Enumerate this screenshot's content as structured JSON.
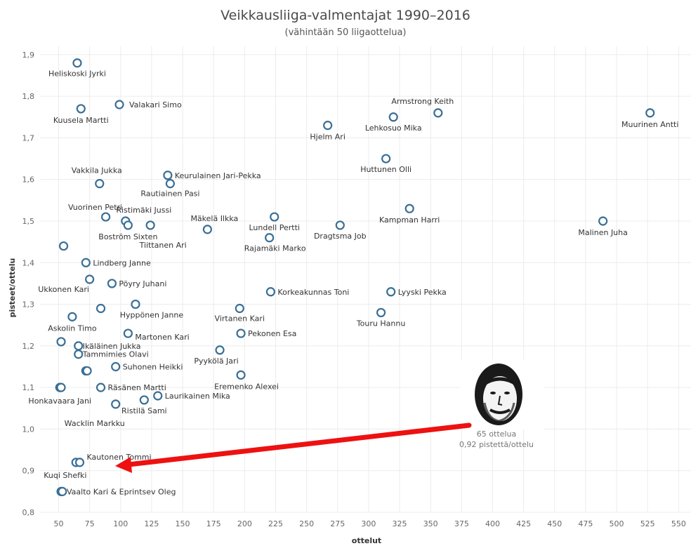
{
  "chart_data": {
    "type": "scatter",
    "title": "Veikkausliiga-valmentajat 1990–2016",
    "subtitle": "(vähintään 50 liigaottelua)",
    "xlabel": "ottelut",
    "ylabel": "pisteet/ottelu",
    "xlim": [
      35,
      560
    ],
    "ylim": [
      0.8,
      1.92
    ],
    "xticks": [
      "50",
      "75",
      "100",
      "125",
      "150",
      "175",
      "200",
      "225",
      "250",
      "275",
      "300",
      "325",
      "350",
      "375",
      "400",
      "425",
      "450",
      "475",
      "500",
      "525",
      "550"
    ],
    "yticks": [
      "0,8",
      "0,9",
      "1,0",
      "1,1",
      "1,2",
      "1,3",
      "1,4",
      "1,5",
      "1,6",
      "1,7",
      "1,8",
      "1,9"
    ],
    "grid": true,
    "marker_color": "#3a6f96",
    "arrow_color": "#ee1111",
    "points": [
      {
        "x": 65,
        "y": 1.88
      },
      {
        "x": 68,
        "y": 1.77
      },
      {
        "x": 99,
        "y": 1.78
      },
      {
        "x": 267,
        "y": 1.73
      },
      {
        "x": 320,
        "y": 1.75
      },
      {
        "x": 356,
        "y": 1.76
      },
      {
        "x": 527,
        "y": 1.76
      },
      {
        "x": 314,
        "y": 1.65
      },
      {
        "x": 83,
        "y": 1.59
      },
      {
        "x": 138,
        "y": 1.61
      },
      {
        "x": 140,
        "y": 1.59
      },
      {
        "x": 333,
        "y": 1.53
      },
      {
        "x": 489,
        "y": 1.5
      },
      {
        "x": 88,
        "y": 1.51
      },
      {
        "x": 104,
        "y": 1.5
      },
      {
        "x": 106,
        "y": 1.49
      },
      {
        "x": 124,
        "y": 1.49
      },
      {
        "x": 170,
        "y": 1.48
      },
      {
        "x": 224,
        "y": 1.51
      },
      {
        "x": 220,
        "y": 1.46
      },
      {
        "x": 277,
        "y": 1.49
      },
      {
        "x": 54,
        "y": 1.44
      },
      {
        "x": 72,
        "y": 1.4
      },
      {
        "x": 75,
        "y": 1.36
      },
      {
        "x": 93,
        "y": 1.35
      },
      {
        "x": 221,
        "y": 1.33
      },
      {
        "x": 318,
        "y": 1.33
      },
      {
        "x": 61,
        "y": 1.27
      },
      {
        "x": 84,
        "y": 1.29
      },
      {
        "x": 112,
        "y": 1.3
      },
      {
        "x": 196,
        "y": 1.29
      },
      {
        "x": 310,
        "y": 1.28
      },
      {
        "x": 106,
        "y": 1.23
      },
      {
        "x": 197,
        "y": 1.23
      },
      {
        "x": 52,
        "y": 1.21
      },
      {
        "x": 66,
        "y": 1.2
      },
      {
        "x": 66,
        "y": 1.18
      },
      {
        "x": 180,
        "y": 1.19
      },
      {
        "x": 96,
        "y": 1.15
      },
      {
        "x": 72,
        "y": 1.14
      },
      {
        "x": 73,
        "y": 1.14
      },
      {
        "x": 197,
        "y": 1.13
      },
      {
        "x": 51,
        "y": 1.1
      },
      {
        "x": 52,
        "y": 1.1
      },
      {
        "x": 84,
        "y": 1.1
      },
      {
        "x": 130,
        "y": 1.08
      },
      {
        "x": 96,
        "y": 1.06
      },
      {
        "x": 119,
        "y": 1.07
      },
      {
        "x": 64,
        "y": 0.92
      },
      {
        "x": 67,
        "y": 0.92
      },
      {
        "x": 52,
        "y": 0.85
      },
      {
        "x": 53,
        "y": 0.85
      }
    ],
    "labels": [
      {
        "text": "Heliskoski Jyrki",
        "x": 65,
        "y": 1.88,
        "dx": 0,
        "dy": 19,
        "anchor": "middle"
      },
      {
        "text": "Kuusela Martti",
        "x": 68,
        "y": 1.77,
        "dx": 0,
        "dy": 20,
        "anchor": "middle"
      },
      {
        "text": "Valakari Simo",
        "x": 99,
        "y": 1.78,
        "dx": 14,
        "dy": 4,
        "anchor": "start"
      },
      {
        "text": "Hjelm Ari",
        "x": 267,
        "y": 1.73,
        "dx": 0,
        "dy": 20,
        "anchor": "middle"
      },
      {
        "text": "Lehkosuo Mika",
        "x": 320,
        "y": 1.75,
        "dx": 0,
        "dy": 19,
        "anchor": "middle"
      },
      {
        "text": "Armstrong Keith",
        "x": 356,
        "y": 1.76,
        "dx": -22,
        "dy": -13,
        "anchor": "middle"
      },
      {
        "text": "Muurinen Antti",
        "x": 527,
        "y": 1.76,
        "dx": 0,
        "dy": 20,
        "anchor": "middle"
      },
      {
        "text": "Huttunen Olli",
        "x": 314,
        "y": 1.65,
        "dx": 0,
        "dy": 19,
        "anchor": "middle"
      },
      {
        "text": "Vakkila Jukka",
        "x": 83,
        "y": 1.59,
        "dx": -4,
        "dy": -15,
        "anchor": "middle"
      },
      {
        "text": "Keurulainen Jari-Pekka",
        "x": 138,
        "y": 1.61,
        "dx": 10,
        "dy": 4,
        "anchor": "start"
      },
      {
        "text": "Rautiainen Pasi",
        "x": 140,
        "y": 1.59,
        "dx": 0,
        "dy": 18,
        "anchor": "middle"
      },
      {
        "text": "Kampman Harri",
        "x": 333,
        "y": 1.53,
        "dx": 0,
        "dy": 20,
        "anchor": "middle"
      },
      {
        "text": "Malinen Juha",
        "x": 489,
        "y": 1.5,
        "dx": 0,
        "dy": 20,
        "anchor": "middle"
      },
      {
        "text": "Vuorinen Petri",
        "x": 88,
        "y": 1.51,
        "dx": -15,
        "dy": -10,
        "anchor": "middle"
      },
      {
        "text": "Ristimäki Jussi",
        "x": 104,
        "y": 1.5,
        "dx": 26,
        "dy": -12,
        "anchor": "middle"
      },
      {
        "text": "Boström Sixten",
        "x": 106,
        "y": 1.49,
        "dx": 0,
        "dy": 20,
        "anchor": "middle"
      },
      {
        "text": "Tiittanen Ari",
        "x": 124,
        "y": 1.49,
        "dx": 18,
        "dy": 32,
        "anchor": "middle"
      },
      {
        "text": "Mäkelä Ilkka",
        "x": 170,
        "y": 1.48,
        "dx": 10,
        "dy": -12,
        "anchor": "middle"
      },
      {
        "text": "Lundell Pertti",
        "x": 224,
        "y": 1.51,
        "dx": 0,
        "dy": 19,
        "anchor": "middle"
      },
      {
        "text": "Rajamäki Marko",
        "x": 220,
        "y": 1.46,
        "dx": 8,
        "dy": 19,
        "anchor": "middle"
      },
      {
        "text": "Dragtsma Job",
        "x": 277,
        "y": 1.49,
        "dx": 0,
        "dy": 19,
        "anchor": "middle"
      },
      {
        "text": "Lindberg Janne",
        "x": 72,
        "y": 1.4,
        "dx": 10,
        "dy": 4,
        "anchor": "start"
      },
      {
        "text": "Ukkonen Kari",
        "x": 75,
        "y": 1.36,
        "dx": -37,
        "dy": 18,
        "anchor": "middle"
      },
      {
        "text": "Pöyry Juhani",
        "x": 93,
        "y": 1.35,
        "dx": 10,
        "dy": 4,
        "anchor": "start"
      },
      {
        "text": "Korkeakunnas Toni",
        "x": 221,
        "y": 1.33,
        "dx": 10,
        "dy": 4,
        "anchor": "start"
      },
      {
        "text": "Lyyski Pekka",
        "x": 318,
        "y": 1.33,
        "dx": 10,
        "dy": 4,
        "anchor": "start"
      },
      {
        "text": "Askolin Timo",
        "x": 61,
        "y": 1.27,
        "dx": 0,
        "dy": 20,
        "anchor": "middle"
      },
      {
        "text": "Hyppönen Janne",
        "x": 112,
        "y": 1.3,
        "dx": 23,
        "dy": 19,
        "anchor": "middle"
      },
      {
        "text": "Virtanen Kari",
        "x": 196,
        "y": 1.29,
        "dx": 0,
        "dy": 18,
        "anchor": "middle"
      },
      {
        "text": "Touru Hannu",
        "x": 310,
        "y": 1.28,
        "dx": 0,
        "dy": 19,
        "anchor": "middle"
      },
      {
        "text": "Martonen Kari",
        "x": 106,
        "y": 1.23,
        "dx": 10,
        "dy": 9,
        "anchor": "start"
      },
      {
        "text": "Pekonen Esa",
        "x": 197,
        "y": 1.23,
        "dx": 10,
        "dy": 4,
        "anchor": "start"
      },
      {
        "text": "Ikäläinen Jukka",
        "x": 66,
        "y": 1.2,
        "dx": 6,
        "dy": 4,
        "anchor": "start"
      },
      {
        "text": "Tammimies Olavi",
        "x": 66,
        "y": 1.18,
        "dx": 6,
        "dy": 4,
        "anchor": "start"
      },
      {
        "text": "Pyykölä Jari",
        "x": 180,
        "y": 1.19,
        "dx": -5,
        "dy": 19,
        "anchor": "middle"
      },
      {
        "text": "Suhonen Heikki",
        "x": 96,
        "y": 1.15,
        "dx": 10,
        "dy": 4,
        "anchor": "start"
      },
      {
        "text": "Eremenko Alexei",
        "x": 197,
        "y": 1.13,
        "dx": 8,
        "dy": 20,
        "anchor": "middle"
      },
      {
        "text": "Räsänen Martti",
        "x": 84,
        "y": 1.1,
        "dx": 10,
        "dy": 4,
        "anchor": "start"
      },
      {
        "text": "Laurikainen Mika",
        "x": 130,
        "y": 1.08,
        "dx": 10,
        "dy": 4,
        "anchor": "start"
      },
      {
        "text": "Honkavaara Jani",
        "x": 51,
        "y": 1.1,
        "dx": 0,
        "dy": 23,
        "anchor": "middle"
      },
      {
        "text": "Ristilä Sami",
        "x": 119,
        "y": 1.07,
        "dx": 0,
        "dy": 19,
        "anchor": "middle"
      },
      {
        "text": "Wacklin Markku",
        "x": 96,
        "y": 1.06,
        "dx": -30,
        "dy": 31,
        "anchor": "middle"
      },
      {
        "text": "Kautonen Tommi",
        "x": 67,
        "y": 0.92,
        "dx": 10,
        "dy": -4,
        "anchor": "start"
      },
      {
        "text": "Kuqi Shefki",
        "x": 64,
        "y": 0.92,
        "dx": -46,
        "dy": 22,
        "anchor": "start"
      },
      {
        "text": "Vaalto Kari & Eprintsev Oleg",
        "x": 52,
        "y": 0.85,
        "dx": 8,
        "dy": 4,
        "anchor": "start"
      }
    ],
    "annotation": {
      "line1": "65 ottelua",
      "line2": "0,92 pistettä/ottelu",
      "portrait_icon": "player-portrait-icon"
    }
  }
}
